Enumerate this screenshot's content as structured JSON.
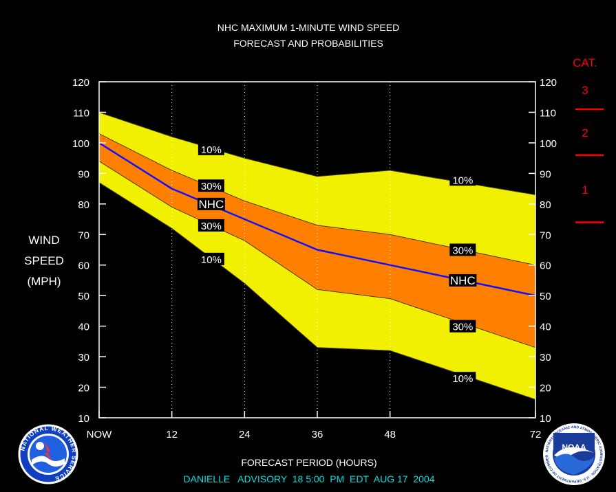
{
  "title_line1": "NHC MAXIMUM 1-MINUTE WIND SPEED",
  "title_line2": "FORECAST AND PROBABILITIES",
  "ylabel_lines": [
    "WIND",
    "SPEED",
    "(MPH)"
  ],
  "xlabel": "FORECAST PERIOD (HOURS)",
  "footer": "DANIELLE   ADVISORY  18 5:00  PM  EDT  AUG 17  2004",
  "category": {
    "title": "CAT.",
    "labels": [
      {
        "label": "3",
        "y": 131
      },
      {
        "label": "2",
        "y": 193
      },
      {
        "label": "1",
        "y": 276
      }
    ],
    "thresholds": [
      111,
      96,
      74
    ]
  },
  "logos": {
    "nws_text": "NATIONAL WEATHER SERVICE",
    "noaa_text": "NOAA",
    "noaa_ring_text": "NATIONAL OCEANIC AND ATMOSPHERIC ADMINISTRATION · U.S. DEPARTMENT OF COMMERCE"
  },
  "colors": {
    "band10": "#f0f000",
    "band30": "#ff8000",
    "nhc": "#1010ff",
    "cat": "#ff0000",
    "footer": "#00e0e0",
    "axis": "#ffffff"
  },
  "chart_data": {
    "type": "area",
    "title": "NHC MAXIMUM 1-MINUTE WIND SPEED FORECAST AND PROBABILITIES",
    "xlabel": "FORECAST PERIOD (HOURS)",
    "ylabel": "WIND SPEED (MPH)",
    "xlim": [
      0,
      72
    ],
    "ylim": [
      10,
      120
    ],
    "x": [
      0,
      12,
      24,
      36,
      48,
      72
    ],
    "x_tick_labels": [
      "NOW",
      "12",
      "24",
      "36",
      "48",
      "72"
    ],
    "y_ticks": [
      10,
      20,
      30,
      40,
      50,
      60,
      70,
      80,
      90,
      100,
      110,
      120
    ],
    "series": [
      {
        "name": "10%",
        "role": "upper10",
        "values": [
          110,
          102,
          95,
          89,
          91,
          83
        ]
      },
      {
        "name": "30%",
        "role": "upper30",
        "values": [
          103,
          91,
          81,
          73,
          70,
          60
        ]
      },
      {
        "name": "NHC",
        "role": "nhc",
        "values": [
          100,
          85,
          75,
          65,
          60,
          50
        ]
      },
      {
        "name": "30%",
        "role": "lower30",
        "values": [
          94,
          79,
          68,
          52,
          49,
          33
        ]
      },
      {
        "name": "10%",
        "role": "lower10",
        "values": [
          87,
          72,
          54,
          33,
          32,
          16
        ]
      }
    ],
    "vertical_gridlines_at": [
      12,
      24,
      36,
      48
    ],
    "labels": [
      {
        "text": "10%",
        "x": 18.5,
        "y": 98
      },
      {
        "text": "30%",
        "x": 18.5,
        "y": 86
      },
      {
        "text": "NHC",
        "x": 18.5,
        "y": 80
      },
      {
        "text": "30%",
        "x": 18.5,
        "y": 73
      },
      {
        "text": "10%",
        "x": 18.5,
        "y": 62
      },
      {
        "text": "10%",
        "x": 60,
        "y": 88
      },
      {
        "text": "30%",
        "x": 60,
        "y": 65
      },
      {
        "text": "NHC",
        "x": 60,
        "y": 55
      },
      {
        "text": "30%",
        "x": 60,
        "y": 40
      },
      {
        "text": "10%",
        "x": 60,
        "y": 23
      }
    ]
  }
}
